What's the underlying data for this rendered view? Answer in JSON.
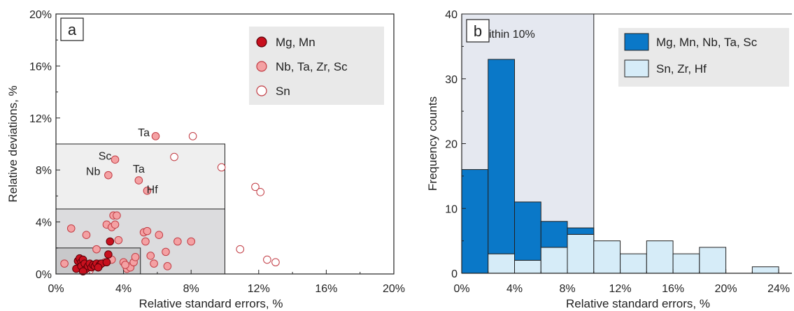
{
  "chart_data": [
    {
      "type": "scatter",
      "panel_label": "a",
      "xlabel": "Relative standard errors, %",
      "ylabel": "Relative deviations, %",
      "xlim": [
        0,
        20
      ],
      "ylim": [
        0,
        20
      ],
      "x_ticks": [
        "0%",
        "4%",
        "8%",
        "12%",
        "16%",
        "20%"
      ],
      "y_ticks": [
        "0%",
        "4%",
        "8%",
        "12%",
        "16%",
        "20%"
      ],
      "boxes": [
        {
          "x": [
            0,
            10
          ],
          "y": [
            0,
            10
          ],
          "color": "#efefef"
        },
        {
          "x": [
            0,
            10
          ],
          "y": [
            0,
            5
          ],
          "color": "#dcdcde"
        },
        {
          "x": [
            0,
            5
          ],
          "y": [
            0,
            2
          ],
          "color": "#c8c8ca"
        }
      ],
      "legend": {
        "position": "top-right",
        "entries": [
          {
            "label": "Mg, Mn",
            "style": "dark"
          },
          {
            "label": "Nb, Ta, Zr, Sc",
            "style": "pink"
          },
          {
            "label": "Sn",
            "style": "open"
          }
        ]
      },
      "annotations": [
        {
          "text": "Ta",
          "x": 5.2,
          "y": 10.6
        },
        {
          "text": "Sc",
          "x": 2.9,
          "y": 8.8
        },
        {
          "text": "Nb",
          "x": 2.2,
          "y": 7.6
        },
        {
          "text": "Ta",
          "x": 4.9,
          "y": 7.8
        },
        {
          "text": "Hf",
          "x": 5.7,
          "y": 6.2
        }
      ],
      "series": [
        {
          "name": "Mg, Mn",
          "style": "dark",
          "points": [
            [
              1.2,
              0.4
            ],
            [
              1.3,
              1.0
            ],
            [
              1.4,
              1.2
            ],
            [
              1.5,
              0.9
            ],
            [
              1.5,
              0.6
            ],
            [
              1.6,
              1.1
            ],
            [
              1.7,
              0.8
            ],
            [
              1.8,
              0.4
            ],
            [
              1.9,
              0.6
            ],
            [
              2.0,
              0.8
            ],
            [
              2.1,
              0.5
            ],
            [
              2.2,
              0.7
            ],
            [
              2.3,
              0.6
            ],
            [
              2.4,
              0.8
            ],
            [
              2.6,
              0.7
            ],
            [
              2.7,
              0.8
            ],
            [
              1.6,
              0.2
            ],
            [
              3.1,
              1.5
            ],
            [
              3.2,
              2.5
            ],
            [
              3.0,
              0.9
            ],
            [
              2.5,
              0.5
            ]
          ]
        },
        {
          "name": "Nb, Ta, Zr, Sc",
          "style": "pink",
          "points": [
            [
              5.9,
              10.6
            ],
            [
              3.5,
              8.8
            ],
            [
              3.1,
              7.6
            ],
            [
              4.9,
              7.2
            ],
            [
              5.4,
              6.4
            ],
            [
              0.5,
              0.8
            ],
            [
              0.9,
              3.5
            ],
            [
              1.8,
              3.0
            ],
            [
              2.4,
              1.9
            ],
            [
              2.6,
              0.8
            ],
            [
              3.0,
              3.8
            ],
            [
              3.3,
              3.6
            ],
            [
              3.4,
              4.5
            ],
            [
              3.5,
              3.8
            ],
            [
              3.6,
              4.5
            ],
            [
              3.7,
              2.6
            ],
            [
              4.0,
              0.9
            ],
            [
              4.2,
              0.4
            ],
            [
              4.4,
              0.5
            ],
            [
              4.6,
              0.9
            ],
            [
              4.7,
              1.3
            ],
            [
              5.2,
              3.2
            ],
            [
              5.3,
              2.5
            ],
            [
              5.4,
              3.3
            ],
            [
              5.6,
              1.4
            ],
            [
              5.8,
              0.8
            ],
            [
              6.1,
              3.0
            ],
            [
              6.5,
              1.7
            ],
            [
              6.6,
              0.6
            ],
            [
              7.2,
              2.5
            ],
            [
              8.0,
              2.5
            ],
            [
              3.3,
              1.1
            ],
            [
              2.9,
              0.9
            ],
            [
              4.1,
              0.7
            ]
          ]
        },
        {
          "name": "Sn",
          "style": "open",
          "points": [
            [
              8.1,
              10.6
            ],
            [
              7.0,
              9.0
            ],
            [
              9.8,
              8.2
            ],
            [
              11.8,
              6.7
            ],
            [
              12.1,
              6.3
            ],
            [
              10.9,
              1.9
            ],
            [
              12.5,
              1.1
            ],
            [
              13.0,
              0.9
            ],
            [
              2.0,
              0.3
            ],
            [
              4.4,
              0.6
            ]
          ]
        }
      ]
    },
    {
      "type": "bar",
      "subtype": "stacked_histogram",
      "panel_label": "b",
      "xlabel": "Relative standard errors, %",
      "ylabel": "Frequency counts",
      "xlim": [
        0,
        25
      ],
      "ylim": [
        0,
        40
      ],
      "x_ticks": [
        "0%",
        "4%",
        "8%",
        "12%",
        "16%",
        "20%",
        "24%"
      ],
      "y_ticks": [
        "0",
        "10",
        "20",
        "30",
        "40"
      ],
      "shaded_region": {
        "x": [
          0,
          10
        ],
        "label": "within 10%"
      },
      "bin_width": 2,
      "bin_starts": [
        0,
        2,
        4,
        6,
        8,
        10,
        12,
        14,
        16,
        18,
        20,
        22
      ],
      "series": [
        {
          "name": "Sn, Zr, Hf",
          "color": "#d6ecf8",
          "values": [
            0,
            3,
            2,
            4,
            6,
            5,
            3,
            5,
            3,
            4,
            0,
            1
          ]
        },
        {
          "name": "Mg, Mn, Nb, Ta, Sc",
          "color": "#0a78c8",
          "values": [
            16,
            30,
            9,
            4,
            1,
            0,
            0,
            0,
            0,
            0,
            0,
            0
          ]
        }
      ],
      "legend": {
        "position": "top-right",
        "entries": [
          {
            "label": "Mg, Mn, Nb, Ta, Sc",
            "color": "#0a78c8"
          },
          {
            "label": "Sn, Zr, Hf",
            "color": "#d6ecf8"
          }
        ]
      }
    }
  ]
}
